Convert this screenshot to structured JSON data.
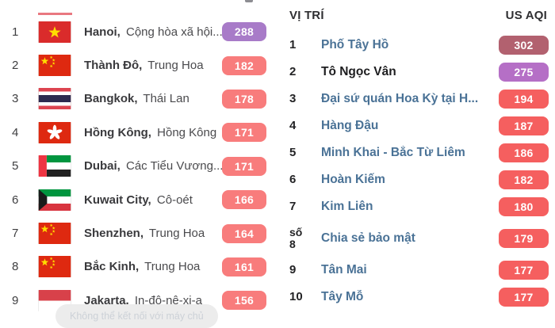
{
  "left_panel": {
    "rows": [
      {
        "rank": "1",
        "flag": "vietnam",
        "city": "Hanoi,",
        "region": "Cộng hòa xã hội...",
        "aqi": "288",
        "badge_color": "#a87bc8"
      },
      {
        "rank": "2",
        "flag": "china",
        "city": "Thành Đô,",
        "region": "Trung Hoa",
        "aqi": "182",
        "badge_color": "#f87c7c"
      },
      {
        "rank": "3",
        "flag": "thailand",
        "city": "Bangkok,",
        "region": "Thái Lan",
        "aqi": "178",
        "badge_color": "#f87c7c"
      },
      {
        "rank": "4",
        "flag": "hong-kong",
        "city": "Hồng Kông,",
        "region": "Hồng Kông",
        "aqi": "171",
        "badge_color": "#f87c7c"
      },
      {
        "rank": "5",
        "flag": "uae",
        "city": "Dubai,",
        "region": "Các Tiểu Vương...",
        "aqi": "171",
        "badge_color": "#f87c7c"
      },
      {
        "rank": "6",
        "flag": "kuwait",
        "city": "Kuwait City,",
        "region": "Cô-oét",
        "aqi": "166",
        "badge_color": "#f87c7c"
      },
      {
        "rank": "7",
        "flag": "china",
        "city": "Shenzhen,",
        "region": "Trung Hoa",
        "aqi": "164",
        "badge_color": "#f87c7c"
      },
      {
        "rank": "8",
        "flag": "china",
        "city": "Bắc Kinh,",
        "region": "Trung Hoa",
        "aqi": "161",
        "badge_color": "#f87c7c"
      },
      {
        "rank": "9",
        "flag": "indonesia",
        "city": "Jakarta,",
        "region": "In-đô-nê-xi-a",
        "aqi": "156",
        "badge_color": "#f87c7c"
      }
    ]
  },
  "right_panel": {
    "header": {
      "location_label": "VỊ TRÍ",
      "aqi_label": "US AQI"
    },
    "rows": [
      {
        "rank": "1",
        "name": "Phố Tây Hồ",
        "aqi": "302",
        "badge_color": "#b2616f",
        "name_style": "link"
      },
      {
        "rank": "2",
        "name": "Tô Ngọc Vân",
        "aqi": "275",
        "badge_color": "#b56fc6",
        "name_style": "dark"
      },
      {
        "rank": "3",
        "name": "Đại sứ quán Hoa Kỳ tại H...",
        "aqi": "194",
        "badge_color": "#f55f5f",
        "name_style": "link"
      },
      {
        "rank": "4",
        "name": "Hàng Đậu",
        "aqi": "187",
        "badge_color": "#f55f5f",
        "name_style": "link"
      },
      {
        "rank": "5",
        "name": "Minh Khai - Bắc Từ Liêm",
        "aqi": "186",
        "badge_color": "#f55f5f",
        "name_style": "link"
      },
      {
        "rank": "6",
        "name": "Hoàn Kiếm",
        "aqi": "182",
        "badge_color": "#f55f5f",
        "name_style": "link"
      },
      {
        "rank": "7",
        "name": "Kim Liên",
        "aqi": "180",
        "badge_color": "#f55f5f",
        "name_style": "link"
      },
      {
        "rank": "số\n8",
        "name": "Chia sẻ bảo mật",
        "aqi": "179",
        "badge_color": "#f55f5f",
        "name_style": "link"
      },
      {
        "rank": "9",
        "name": "Tân Mai",
        "aqi": "177",
        "badge_color": "#f55f5f",
        "name_style": "link"
      },
      {
        "rank": "10",
        "name": "Tây Mỗ",
        "aqi": "177",
        "badge_color": "#f55f5f",
        "name_style": "link"
      }
    ]
  },
  "toast": {
    "message": "Không thể kết nối với máy chủ"
  },
  "colors": {
    "aqi_unhealthy_red_left": "#f87c7c",
    "aqi_unhealthy_red_right": "#f55f5f",
    "aqi_very_unhealthy_purple": "#a87bc8",
    "aqi_very_unhealthy_purple_right": "#b56fc6",
    "aqi_hazardous_maroon": "#b2616f",
    "station_link_blue": "#4a7296"
  }
}
